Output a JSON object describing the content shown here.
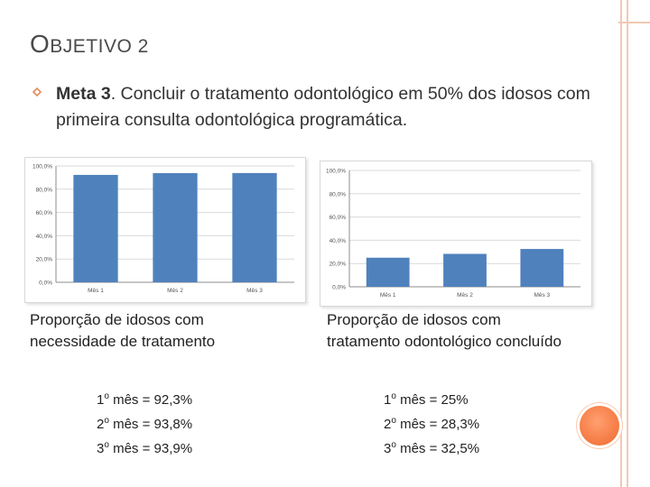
{
  "slide": {
    "title_cap": "O",
    "title_rest": "BJETIVO 2",
    "meta_label": "Meta 3",
    "meta_text": ". Concluir o tratamento odontológico em 50% dos idosos com primeira consulta odontológica programática."
  },
  "chart_data": [
    {
      "type": "bar",
      "title": "",
      "categories": [
        "Mês 1",
        "Mês 2",
        "Mês 3"
      ],
      "values": [
        92.3,
        93.8,
        93.9
      ],
      "ylim": [
        0,
        100
      ],
      "yticks": [
        "0,0%",
        "20,0%",
        "40,0%",
        "60,0%",
        "80,0%",
        "100,0%"
      ],
      "color": "#4f81bd"
    },
    {
      "type": "bar",
      "title": "",
      "categories": [
        "Mês 1",
        "Mês 2",
        "Mês 3"
      ],
      "values": [
        25,
        28.3,
        32.5
      ],
      "ylim": [
        0,
        100
      ],
      "yticks": [
        "0,0%",
        "20,0%",
        "40,0%",
        "60,0%",
        "80,0%",
        "100,0%"
      ],
      "color": "#4f81bd"
    }
  ],
  "left": {
    "caption_line1": "Proporção de idosos com",
    "caption_line2": "necessidade de tratamento",
    "rows": [
      {
        "n": "1",
        "sup": "o",
        "text": " mês = 92,3%"
      },
      {
        "n": "2",
        "sup": "o",
        "text": " mês = 93,8%"
      },
      {
        "n": "3",
        "sup": "o",
        "text": " mês = 93,9%"
      }
    ]
  },
  "right": {
    "caption_line1": "Proporção de idosos com",
    "caption_line2": "tratamento odontológico concluído",
    "rows": [
      {
        "n": "1",
        "sup": "o",
        "text": " mês = 25%"
      },
      {
        "n": "2",
        "sup": "o",
        "text": " mês = 28,3%"
      },
      {
        "n": "3",
        "sup": "o",
        "text": " mês = 32,5%"
      }
    ]
  },
  "colors": {
    "accent": "#f67e48",
    "deco_line": "#f3c8b2",
    "bar": "#4f81bd"
  }
}
